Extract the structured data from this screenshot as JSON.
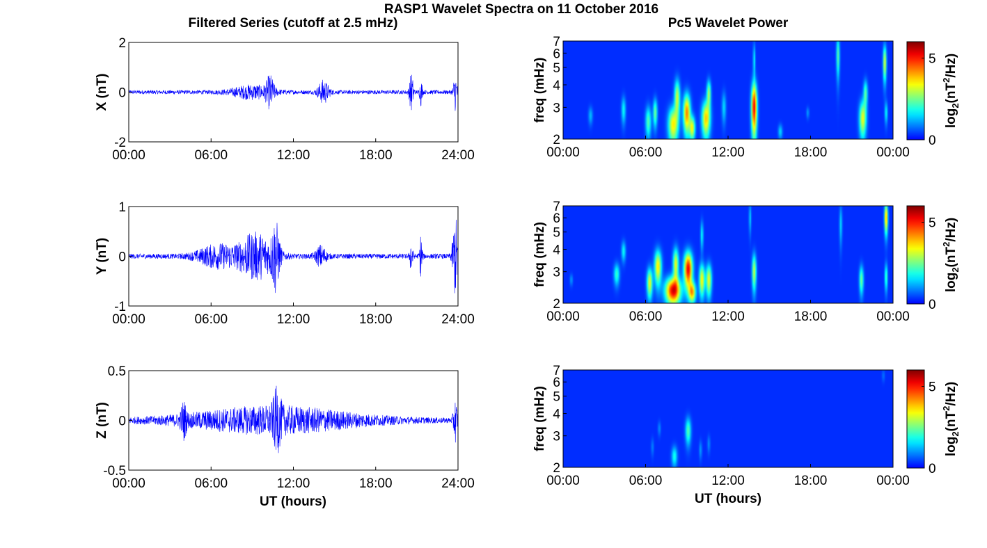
{
  "figure": {
    "title": "RASP1 Wavelet Spectra on 11 October 2016",
    "left_column_title": "Filtered Series (cutoff at 2.5 mHz)",
    "right_column_title": "Pc5 Wavelet Power",
    "x_label": "UT (hours)",
    "freq_label": "freq (mHz)",
    "colorbar_label_prefix": "log",
    "colorbar_label_sub": "2",
    "colorbar_label_mid": "(nT",
    "colorbar_label_sup": "2",
    "colorbar_label_suffix": "/Hz)"
  },
  "colors": {
    "series_line": "#0000ff",
    "spectrum_background": "#00008f"
  },
  "chart_data": [
    {
      "type": "line",
      "name": "X filtered series",
      "ylabel": "X (nT)",
      "xlim_hours": [
        0,
        24
      ],
      "ylim": [
        -2,
        2
      ],
      "x_ticks": [
        "00:00",
        "06:00",
        "12:00",
        "18:00",
        "24:00"
      ],
      "y_ticks": [
        "2",
        "0",
        "-2"
      ],
      "y_tick_values": [
        2,
        0,
        -2
      ],
      "base_amplitude": 0.08,
      "bursts": [
        {
          "t": 9.0,
          "amp": 0.25,
          "w": 1.5
        },
        {
          "t": 10.3,
          "amp": 0.55,
          "w": 0.3
        },
        {
          "t": 14.2,
          "amp": 0.45,
          "w": 0.4
        },
        {
          "t": 20.6,
          "amp": 0.75,
          "w": 0.15
        },
        {
          "t": 21.3,
          "amp": 0.5,
          "w": 0.1
        },
        {
          "t": 23.8,
          "amp": 0.7,
          "w": 0.15
        }
      ]
    },
    {
      "type": "line",
      "name": "Y filtered series",
      "ylabel": "Y (nT)",
      "xlim_hours": [
        0,
        24
      ],
      "ylim": [
        -1,
        1
      ],
      "x_ticks": [
        "00:00",
        "06:00",
        "12:00",
        "18:00",
        "24:00"
      ],
      "y_ticks": [
        "1",
        "0",
        "-1"
      ],
      "y_tick_values": [
        1,
        0,
        -1
      ],
      "base_amplitude": 0.05,
      "bursts": [
        {
          "t": 6.5,
          "amp": 0.22,
          "w": 1.5
        },
        {
          "t": 9.3,
          "amp": 0.45,
          "w": 1.3
        },
        {
          "t": 10.7,
          "amp": 0.6,
          "w": 0.3
        },
        {
          "t": 14.0,
          "amp": 0.2,
          "w": 0.4
        },
        {
          "t": 20.6,
          "amp": 0.4,
          "w": 0.1
        },
        {
          "t": 21.3,
          "amp": 0.45,
          "w": 0.1
        },
        {
          "t": 23.8,
          "amp": 0.8,
          "w": 0.2
        }
      ]
    },
    {
      "type": "line",
      "name": "Z filtered series",
      "ylabel": "Z (nT)",
      "xlim_hours": [
        0,
        24
      ],
      "ylim": [
        -0.5,
        0.5
      ],
      "x_ticks": [
        "00:00",
        "06:00",
        "12:00",
        "18:00",
        "24:00"
      ],
      "y_ticks": [
        "0.5",
        "0",
        "-0.5"
      ],
      "y_tick_values": [
        0.5,
        0,
        -0.5
      ],
      "base_amplitude": 0.025,
      "bursts": [
        {
          "t": 10.5,
          "amp": 0.13,
          "w": 6.5
        },
        {
          "t": 4.0,
          "amp": 0.15,
          "w": 0.2
        },
        {
          "t": 10.8,
          "amp": 0.2,
          "w": 0.3
        },
        {
          "t": 23.8,
          "amp": 0.2,
          "w": 0.15
        }
      ]
    },
    {
      "type": "heatmap",
      "name": "X wavelet power",
      "ylabel": "freq (mHz)",
      "xlim_hours": [
        0,
        24
      ],
      "ylim_mHz": [
        2,
        7
      ],
      "y_scale": "log",
      "x_ticks": [
        "00:00",
        "06:00",
        "12:00",
        "18:00",
        "00:00"
      ],
      "y_ticks": [
        2,
        3,
        4,
        5,
        6,
        7
      ],
      "color_range": [
        0,
        6
      ],
      "colorbar_ticks": [
        0,
        5
      ],
      "blobs": [
        {
          "t": 2.0,
          "f": 2.7,
          "dt": 0.15,
          "df": 0.3,
          "v": 1.0
        },
        {
          "t": 4.4,
          "f": 2.9,
          "dt": 0.15,
          "df": 0.5,
          "v": 1.5
        },
        {
          "t": 6.2,
          "f": 2.5,
          "dt": 0.2,
          "df": 0.5,
          "v": 2.0
        },
        {
          "t": 6.7,
          "f": 2.8,
          "dt": 0.15,
          "df": 0.5,
          "v": 2.2
        },
        {
          "t": 8.0,
          "f": 2.4,
          "dt": 0.35,
          "df": 0.55,
          "v": 3.2
        },
        {
          "t": 8.3,
          "f": 3.4,
          "dt": 0.2,
          "df": 0.8,
          "v": 2.8
        },
        {
          "t": 9.0,
          "f": 2.8,
          "dt": 0.25,
          "df": 0.7,
          "v": 4.0
        },
        {
          "t": 9.4,
          "f": 2.3,
          "dt": 0.2,
          "df": 0.35,
          "v": 3.0
        },
        {
          "t": 10.4,
          "f": 2.6,
          "dt": 0.3,
          "df": 0.6,
          "v": 3.5
        },
        {
          "t": 10.6,
          "f": 3.6,
          "dt": 0.15,
          "df": 0.6,
          "v": 2.5
        },
        {
          "t": 11.7,
          "f": 3.0,
          "dt": 0.15,
          "df": 0.6,
          "v": 1.2
        },
        {
          "t": 13.9,
          "f": 3.0,
          "dt": 0.2,
          "df": 1.0,
          "v": 5.0
        },
        {
          "t": 13.9,
          "f": 5.5,
          "dt": 0.08,
          "df": 1.2,
          "v": 1.5
        },
        {
          "t": 15.8,
          "f": 2.2,
          "dt": 0.15,
          "df": 0.2,
          "v": 1.2
        },
        {
          "t": 17.8,
          "f": 2.8,
          "dt": 0.1,
          "df": 0.2,
          "v": 0.8
        },
        {
          "t": 20.0,
          "f": 5.8,
          "dt": 0.12,
          "df": 1.6,
          "v": 2.0
        },
        {
          "t": 21.8,
          "f": 2.6,
          "dt": 0.25,
          "df": 0.6,
          "v": 3.0
        },
        {
          "t": 22.0,
          "f": 3.6,
          "dt": 0.15,
          "df": 0.6,
          "v": 2.0
        },
        {
          "t": 23.4,
          "f": 5.3,
          "dt": 0.12,
          "df": 1.2,
          "v": 3.0
        },
        {
          "t": 23.5,
          "f": 2.8,
          "dt": 0.1,
          "df": 0.4,
          "v": 1.5
        }
      ]
    },
    {
      "type": "heatmap",
      "name": "Y wavelet power",
      "ylabel": "freq (mHz)",
      "xlim_hours": [
        0,
        24
      ],
      "ylim_mHz": [
        2,
        7
      ],
      "y_scale": "log",
      "x_ticks": [
        "00:00",
        "06:00",
        "12:00",
        "18:00",
        "00:00"
      ],
      "y_ticks": [
        2,
        3,
        4,
        5,
        6,
        7
      ],
      "color_range": [
        0,
        6
      ],
      "colorbar_ticks": [
        0,
        5
      ],
      "blobs": [
        {
          "t": 0.6,
          "f": 2.7,
          "dt": 0.1,
          "df": 0.2,
          "v": 0.8
        },
        {
          "t": 3.9,
          "f": 2.9,
          "dt": 0.2,
          "df": 0.4,
          "v": 1.8
        },
        {
          "t": 4.4,
          "f": 3.9,
          "dt": 0.15,
          "df": 0.5,
          "v": 1.5
        },
        {
          "t": 6.3,
          "f": 2.6,
          "dt": 0.2,
          "df": 0.5,
          "v": 3.0
        },
        {
          "t": 6.9,
          "f": 3.2,
          "dt": 0.25,
          "df": 0.7,
          "v": 3.3
        },
        {
          "t": 8.0,
          "f": 2.35,
          "dt": 0.55,
          "df": 0.4,
          "v": 5.0
        },
        {
          "t": 8.2,
          "f": 3.3,
          "dt": 0.2,
          "df": 0.7,
          "v": 3.0
        },
        {
          "t": 9.1,
          "f": 3.1,
          "dt": 0.3,
          "df": 0.7,
          "v": 5.0
        },
        {
          "t": 9.4,
          "f": 2.3,
          "dt": 0.25,
          "df": 0.3,
          "v": 3.5
        },
        {
          "t": 10.1,
          "f": 2.7,
          "dt": 0.2,
          "df": 0.55,
          "v": 3.2
        },
        {
          "t": 10.6,
          "f": 2.7,
          "dt": 0.2,
          "df": 0.55,
          "v": 3.0
        },
        {
          "t": 10.1,
          "f": 4.8,
          "dt": 0.1,
          "df": 0.9,
          "v": 1.5
        },
        {
          "t": 13.9,
          "f": 3.0,
          "dt": 0.15,
          "df": 0.7,
          "v": 2.8
        },
        {
          "t": 13.6,
          "f": 6.0,
          "dt": 0.08,
          "df": 1.2,
          "v": 1.2
        },
        {
          "t": 20.2,
          "f": 5.5,
          "dt": 0.1,
          "df": 1.4,
          "v": 1.2
        },
        {
          "t": 21.7,
          "f": 2.7,
          "dt": 0.15,
          "df": 0.5,
          "v": 2.2
        },
        {
          "t": 23.5,
          "f": 6.0,
          "dt": 0.12,
          "df": 1.2,
          "v": 3.8
        },
        {
          "t": 23.5,
          "f": 2.8,
          "dt": 0.1,
          "df": 0.5,
          "v": 2.0
        }
      ]
    },
    {
      "type": "heatmap",
      "name": "Z wavelet power",
      "ylabel": "freq (mHz)",
      "xlim_hours": [
        0,
        24
      ],
      "ylim_mHz": [
        2,
        7
      ],
      "y_scale": "log",
      "x_ticks": [
        "00:00",
        "06:00",
        "12:00",
        "18:00",
        "00:00"
      ],
      "y_ticks": [
        2,
        3,
        4,
        5,
        6,
        7
      ],
      "color_range": [
        0,
        6
      ],
      "colorbar_ticks": [
        0,
        5
      ],
      "blobs": [
        {
          "t": 6.5,
          "f": 2.6,
          "dt": 0.1,
          "df": 0.3,
          "v": 0.6
        },
        {
          "t": 7.0,
          "f": 3.3,
          "dt": 0.1,
          "df": 0.3,
          "v": 0.7
        },
        {
          "t": 8.1,
          "f": 2.3,
          "dt": 0.2,
          "df": 0.3,
          "v": 1.6
        },
        {
          "t": 9.1,
          "f": 3.2,
          "dt": 0.2,
          "df": 0.55,
          "v": 2.0
        },
        {
          "t": 10.0,
          "f": 2.5,
          "dt": 0.1,
          "df": 0.3,
          "v": 0.8
        },
        {
          "t": 10.6,
          "f": 2.7,
          "dt": 0.1,
          "df": 0.3,
          "v": 0.7
        },
        {
          "t": 23.3,
          "f": 6.5,
          "dt": 0.1,
          "df": 0.5,
          "v": 0.5
        }
      ]
    }
  ]
}
